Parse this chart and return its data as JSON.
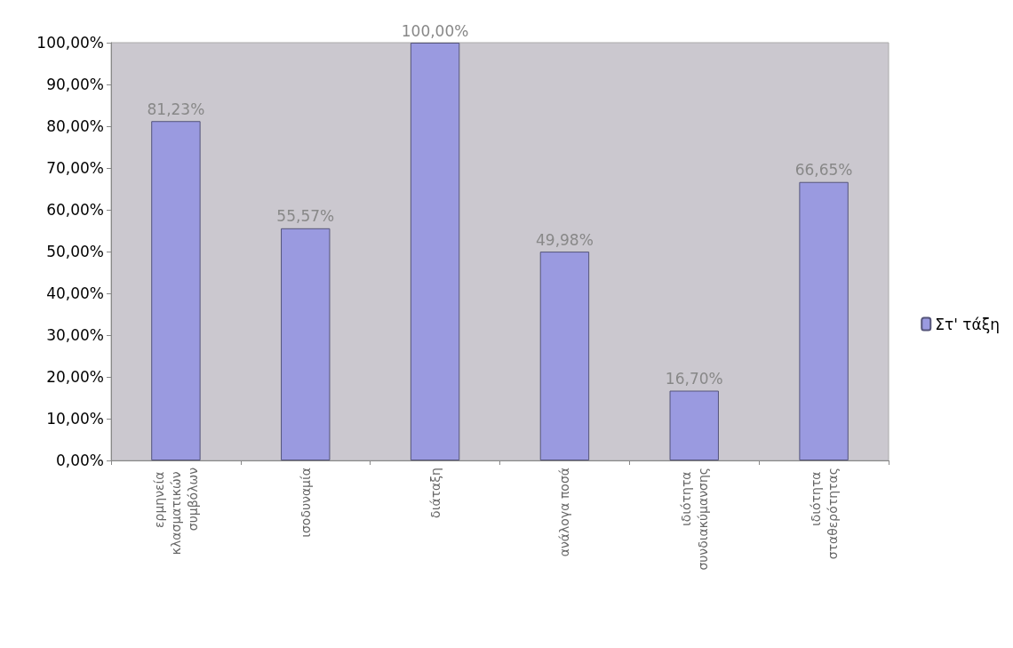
{
  "chart_data": {
    "type": "bar",
    "categories": [
      "ερμηνεία κλασματικών συμβόλων",
      "ισοδυναμία",
      "διάταξη",
      "ανάλογα ποσά",
      "ιδιότητα συνδιακύμανσης",
      "ιδιότητα σταθερότητας"
    ],
    "series": [
      {
        "name": "Στ' τάξη",
        "color": "#9a9ae0",
        "values": [
          81.23,
          55.57,
          100,
          49.98,
          16.7,
          66.65
        ],
        "value_labels": [
          "81,23%",
          "55,57%",
          "100,00%",
          "49,98%",
          "16,70%",
          "66,65%"
        ]
      }
    ],
    "ylim": [
      0,
      100
    ],
    "yticks": [
      {
        "value": 0,
        "label": "0,00%"
      },
      {
        "value": 10,
        "label": "10,00%"
      },
      {
        "value": 20,
        "label": "20,00%"
      },
      {
        "value": 30,
        "label": "30,00%"
      },
      {
        "value": 40,
        "label": "40,00%"
      },
      {
        "value": 50,
        "label": "50,00%"
      },
      {
        "value": 60,
        "label": "60,00%"
      },
      {
        "value": 70,
        "label": "70,00%"
      },
      {
        "value": 80,
        "label": "80,00%"
      },
      {
        "value": 90,
        "label": "90,00%"
      },
      {
        "value": 100,
        "label": "100,00%"
      }
    ],
    "grid": false,
    "legend": "right"
  }
}
